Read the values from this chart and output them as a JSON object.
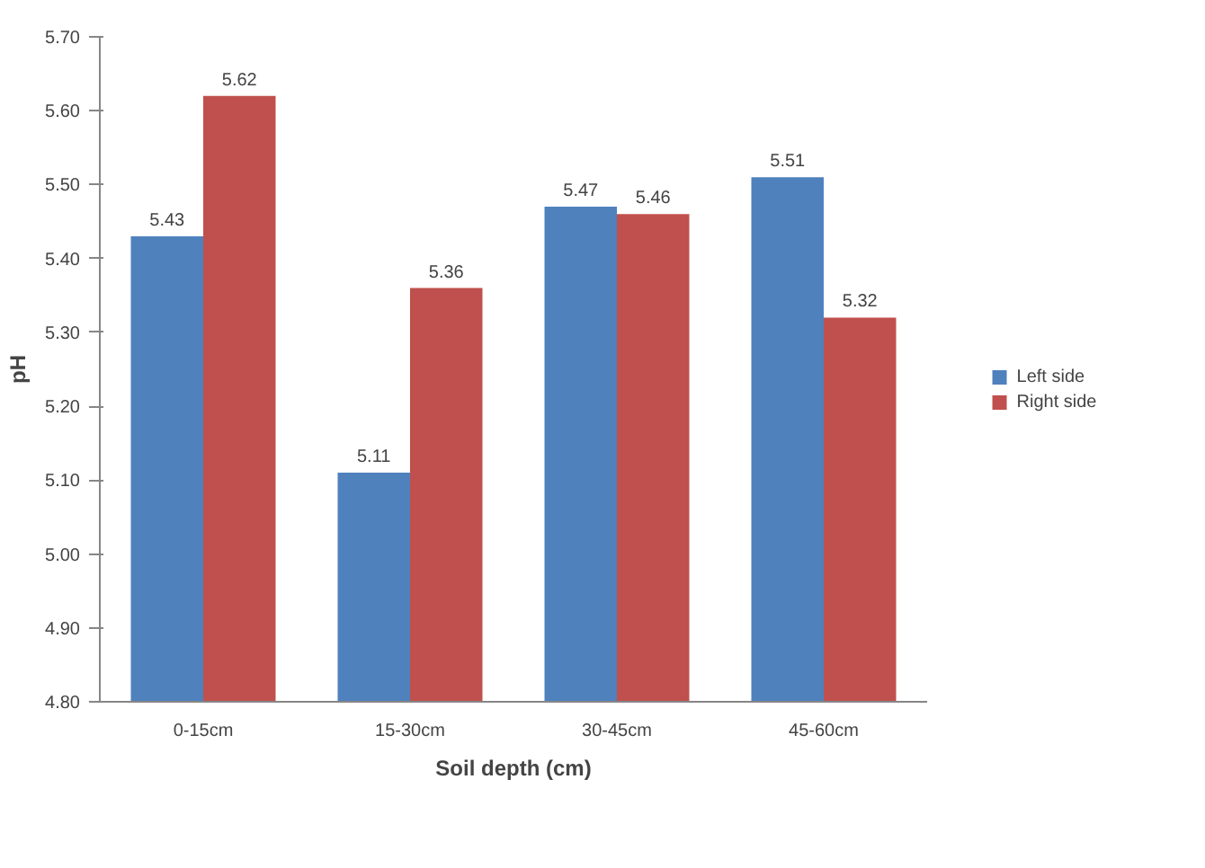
{
  "chart_data": {
    "type": "bar",
    "xlabel": "Soil depth (cm)",
    "ylabel": "pH",
    "categories": [
      "0-15cm",
      "15-30cm",
      "30-45cm",
      "45-60cm"
    ],
    "series": [
      {
        "name": "Left side",
        "color": "#4f81bd",
        "values": [
          5.43,
          5.11,
          5.47,
          5.51
        ]
      },
      {
        "name": "Right side",
        "color": "#c0504d",
        "values": [
          5.62,
          5.36,
          5.46,
          5.32
        ]
      }
    ],
    "ylim": [
      4.8,
      5.7
    ],
    "yticks": [
      {
        "value": 4.8,
        "label": "4.80"
      },
      {
        "value": 4.9,
        "label": "4.90"
      },
      {
        "value": 5.0,
        "label": "5.00"
      },
      {
        "value": 5.1,
        "label": "5.10"
      },
      {
        "value": 5.2,
        "label": "5.20"
      },
      {
        "value": 5.3,
        "label": "5.30"
      },
      {
        "value": 5.4,
        "label": "5.40"
      },
      {
        "value": 5.5,
        "label": "5.50"
      },
      {
        "value": 5.6,
        "label": "5.60"
      },
      {
        "value": 5.7,
        "label": "5.70"
      }
    ],
    "data_labels": true,
    "legend": "right",
    "grid": false
  }
}
